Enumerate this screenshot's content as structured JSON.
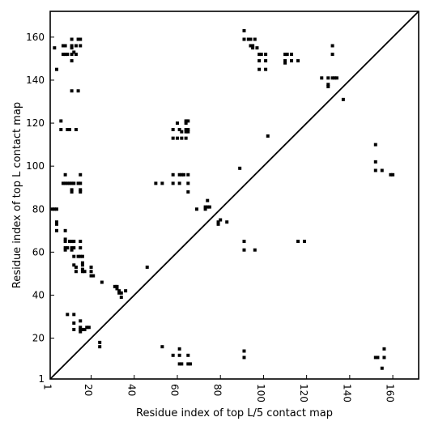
{
  "chart_data": {
    "type": "scatter",
    "title": "",
    "xlabel": "Residue index of top L/5 contact map",
    "ylabel": "Residue index of top L contact map",
    "xlim": [
      1,
      172
    ],
    "ylim": [
      1,
      172
    ],
    "xticks": [
      1,
      20,
      40,
      60,
      80,
      100,
      120,
      140,
      160
    ],
    "yticks": [
      1,
      20,
      40,
      60,
      80,
      100,
      120,
      140,
      160
    ],
    "marker_color": "#000000",
    "diagonal": true,
    "grid": false,
    "series": [
      {
        "points": [
          [
            3,
            155
          ],
          [
            4,
            145
          ],
          [
            6,
            121
          ],
          [
            6,
            117
          ],
          [
            7,
            152
          ],
          [
            7,
            156
          ],
          [
            8,
            156
          ],
          [
            8,
            152
          ],
          [
            9,
            152
          ],
          [
            9,
            117
          ],
          [
            10,
            117
          ],
          [
            11,
            159
          ],
          [
            11,
            156
          ],
          [
            11,
            155
          ],
          [
            11,
            152
          ],
          [
            11,
            149
          ],
          [
            12,
            153
          ],
          [
            13,
            156
          ],
          [
            13,
            152
          ],
          [
            14,
            159
          ],
          [
            15,
            159
          ],
          [
            15,
            156
          ],
          [
            11,
            135
          ],
          [
            14,
            135
          ],
          [
            13,
            117
          ],
          [
            7,
            92
          ],
          [
            8,
            92
          ],
          [
            8,
            96
          ],
          [
            9,
            92
          ],
          [
            10,
            92
          ],
          [
            11,
            92
          ],
          [
            11,
            89
          ],
          [
            11,
            88
          ],
          [
            12,
            92
          ],
          [
            14,
            92
          ],
          [
            15,
            92
          ],
          [
            15,
            96
          ],
          [
            15,
            89
          ],
          [
            15,
            88
          ],
          [
            2,
            80
          ],
          [
            3,
            80
          ],
          [
            4,
            80
          ],
          [
            4,
            74
          ],
          [
            4,
            73
          ],
          [
            4,
            70
          ],
          [
            8,
            70
          ],
          [
            8,
            66
          ],
          [
            8,
            65
          ],
          [
            8,
            62
          ],
          [
            8,
            61
          ],
          [
            9,
            62
          ],
          [
            10,
            65
          ],
          [
            11,
            65
          ],
          [
            11,
            62
          ],
          [
            11,
            61
          ],
          [
            12,
            65
          ],
          [
            12,
            62
          ],
          [
            12,
            58
          ],
          [
            12,
            54
          ],
          [
            13,
            53
          ],
          [
            13,
            51
          ],
          [
            14,
            58
          ],
          [
            15,
            65
          ],
          [
            15,
            62
          ],
          [
            15,
            58
          ],
          [
            16,
            58
          ],
          [
            16,
            55
          ],
          [
            16,
            54
          ],
          [
            16,
            52
          ],
          [
            16,
            51
          ],
          [
            17,
            51
          ],
          [
            20,
            53
          ],
          [
            20,
            51
          ],
          [
            20,
            49
          ],
          [
            21,
            49
          ],
          [
            25,
            46
          ],
          [
            9,
            31
          ],
          [
            12,
            31
          ],
          [
            12,
            27
          ],
          [
            12,
            24
          ],
          [
            15,
            28
          ],
          [
            15,
            25
          ],
          [
            15,
            24
          ],
          [
            15,
            23
          ],
          [
            16,
            24
          ],
          [
            17,
            24
          ],
          [
            18,
            25
          ],
          [
            19,
            25
          ],
          [
            24,
            18
          ],
          [
            24,
            16
          ],
          [
            31,
            44
          ],
          [
            32,
            44
          ],
          [
            32,
            43
          ],
          [
            33,
            42
          ],
          [
            33,
            41
          ],
          [
            34,
            41
          ],
          [
            34,
            39
          ],
          [
            36,
            42
          ],
          [
            46,
            53
          ],
          [
            50,
            92
          ],
          [
            53,
            92
          ],
          [
            53,
            16
          ],
          [
            58,
            117
          ],
          [
            58,
            113
          ],
          [
            58,
            96
          ],
          [
            58,
            92
          ],
          [
            58,
            12
          ],
          [
            60,
            120
          ],
          [
            60,
            113
          ],
          [
            61,
            117
          ],
          [
            61,
            96
          ],
          [
            61,
            92
          ],
          [
            61,
            15
          ],
          [
            61,
            12
          ],
          [
            61,
            8
          ],
          [
            62,
            116
          ],
          [
            62,
            113
          ],
          [
            62,
            96
          ],
          [
            62,
            8
          ],
          [
            63,
            96
          ],
          [
            64,
            121
          ],
          [
            64,
            120
          ],
          [
            64,
            117
          ],
          [
            64,
            116
          ],
          [
            64,
            113
          ],
          [
            65,
            121
          ],
          [
            65,
            117
          ],
          [
            65,
            116
          ],
          [
            65,
            96
          ],
          [
            65,
            92
          ],
          [
            65,
            88
          ],
          [
            65,
            12
          ],
          [
            65,
            8
          ],
          [
            66,
            8
          ],
          [
            69,
            80
          ],
          [
            73,
            81
          ],
          [
            73,
            80
          ],
          [
            74,
            84
          ],
          [
            74,
            81
          ],
          [
            75,
            81
          ],
          [
            79,
            74
          ],
          [
            79,
            73
          ],
          [
            80,
            75
          ],
          [
            83,
            74
          ],
          [
            89,
            99
          ],
          [
            91,
            163
          ],
          [
            91,
            159
          ],
          [
            91,
            65
          ],
          [
            91,
            61
          ],
          [
            91,
            14
          ],
          [
            91,
            11
          ],
          [
            93,
            159
          ],
          [
            94,
            159
          ],
          [
            94,
            156
          ],
          [
            95,
            156
          ],
          [
            95,
            155
          ],
          [
            96,
            159
          ],
          [
            96,
            61
          ],
          [
            97,
            155
          ],
          [
            98,
            152
          ],
          [
            98,
            149
          ],
          [
            98,
            145
          ],
          [
            99,
            152
          ],
          [
            101,
            152
          ],
          [
            101,
            149
          ],
          [
            101,
            145
          ],
          [
            102,
            114
          ],
          [
            110,
            152
          ],
          [
            110,
            149
          ],
          [
            110,
            148
          ],
          [
            111,
            152
          ],
          [
            113,
            152
          ],
          [
            113,
            149
          ],
          [
            116,
            149
          ],
          [
            116,
            65
          ],
          [
            119,
            65
          ],
          [
            127,
            141
          ],
          [
            130,
            141
          ],
          [
            130,
            138
          ],
          [
            130,
            137
          ],
          [
            132,
            156
          ],
          [
            132,
            152
          ],
          [
            132,
            141
          ],
          [
            133,
            141
          ],
          [
            134,
            141
          ],
          [
            137,
            131
          ],
          [
            152,
            110
          ],
          [
            152,
            102
          ],
          [
            152,
            98
          ],
          [
            152,
            11
          ],
          [
            153,
            11
          ],
          [
            155,
            98
          ],
          [
            155,
            6
          ],
          [
            156,
            15
          ],
          [
            156,
            11
          ],
          [
            159,
            96
          ],
          [
            160,
            96
          ]
        ]
      }
    ]
  }
}
